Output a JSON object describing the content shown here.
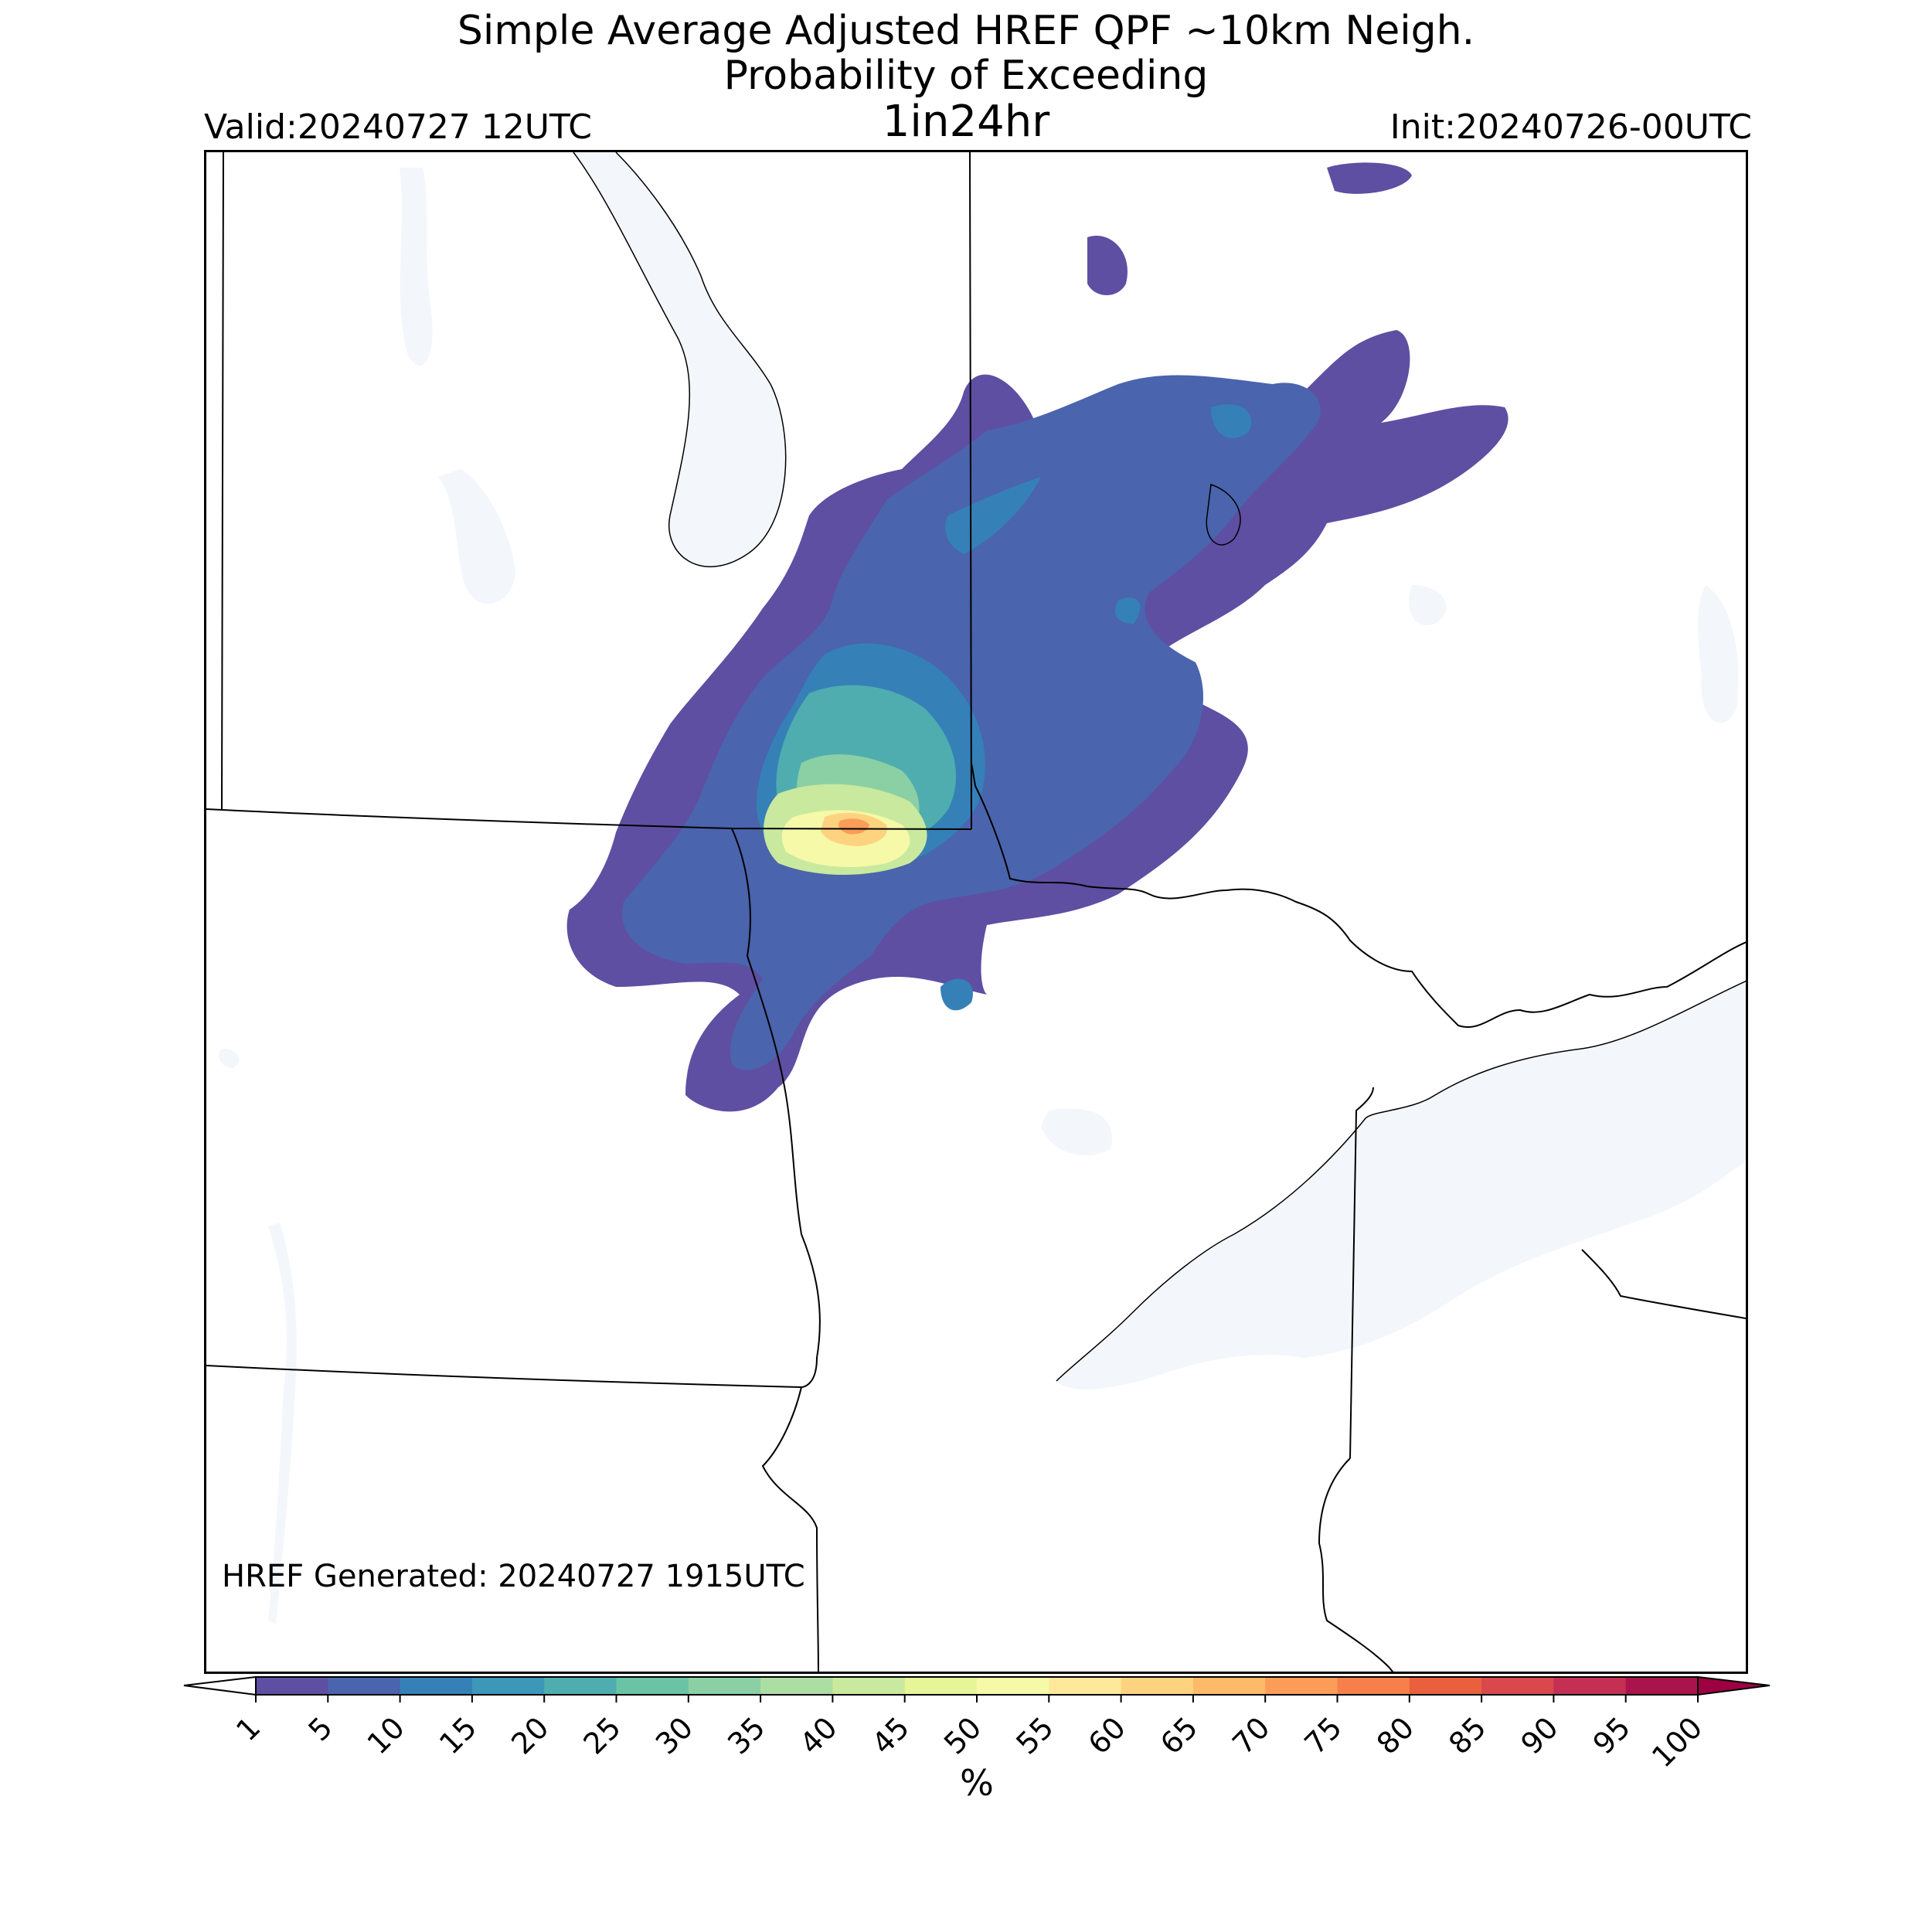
{
  "title": {
    "line1": "Simple Average Adjusted HREF QPF ~10km Neigh.",
    "line2": "Probability of Exceeding",
    "line3": "1in24hr"
  },
  "valid": "Valid:20240727 12UTC",
  "init": "Init:20240726-00UTC",
  "generated": "HREF Generated: 20240727 1915UTC",
  "colorbar": {
    "label": "%",
    "ticks": [
      "1",
      "5",
      "10",
      "15",
      "20",
      "25",
      "30",
      "35",
      "40",
      "45",
      "50",
      "55",
      "60",
      "65",
      "70",
      "75",
      "80",
      "85",
      "90",
      "95",
      "100"
    ],
    "colors": [
      "#5e4fa2",
      "#4a64ad",
      "#3680b8",
      "#3d97b8",
      "#4fadaf",
      "#6ac3a5",
      "#8ad0a4",
      "#acdda2",
      "#c9e99e",
      "#e6f598",
      "#f5f9a8",
      "#fee89a",
      "#fed380",
      "#fdbb6a",
      "#fb9d59",
      "#f67f4b",
      "#e9603f",
      "#d8484c",
      "#c33053",
      "#a9144c"
    ],
    "under_color": "#ffffff",
    "over_color": "#9e0142"
  },
  "map": {
    "water_color": "#f3f6fa",
    "line_color": "#000000"
  }
}
